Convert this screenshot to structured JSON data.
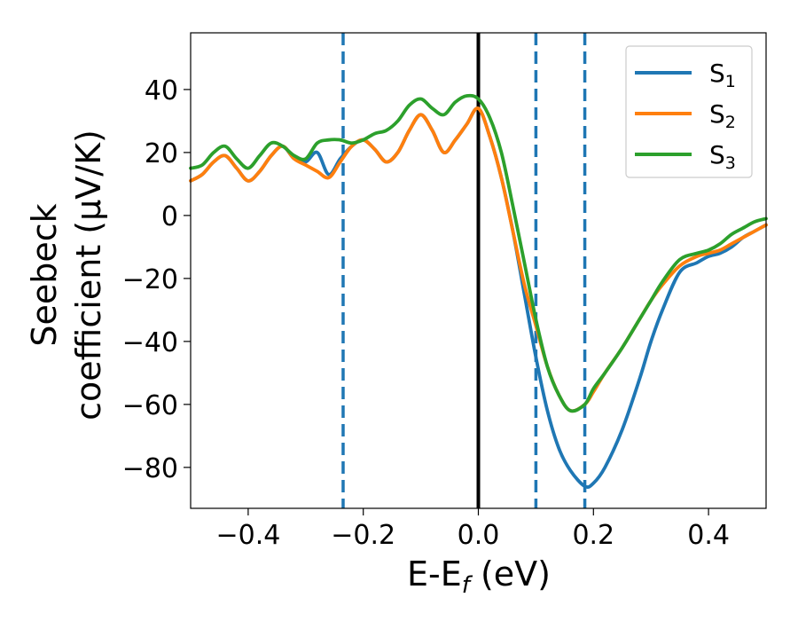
{
  "chart_data": {
    "type": "line",
    "xlabel": "E-E",
    "xlabel_sub": "f",
    "xlabel_unit": " (eV)",
    "ylabel_line1": "Seebeck",
    "ylabel_line2": "coefficient  (μV/K)",
    "xlim": [
      -0.5,
      0.5
    ],
    "ylim": [
      -93,
      58
    ],
    "xticks": [
      -0.4,
      -0.2,
      0.0,
      0.2,
      0.4
    ],
    "xtick_labels": [
      "−0.4",
      "−0.2",
      "0.0",
      "0.2",
      "0.4"
    ],
    "yticks": [
      40,
      20,
      0,
      -20,
      -40,
      -60,
      -80
    ],
    "ytick_labels": [
      "40",
      "20",
      "0",
      "−20",
      "−40",
      "−60",
      "−80"
    ],
    "grid": false,
    "legend_position": "top-right",
    "vertical_lines": [
      {
        "x": 0.0,
        "style": "solid",
        "color": "#000000"
      },
      {
        "x": -0.235,
        "style": "dashed",
        "color": "#1f77b4"
      },
      {
        "x": 0.1,
        "style": "dashed",
        "color": "#1f77b4"
      },
      {
        "x": 0.185,
        "style": "dashed",
        "color": "#1f77b4"
      }
    ],
    "series": [
      {
        "name": "S",
        "sub": "1",
        "color": "#1f77b4",
        "x": [
          -0.5,
          -0.48,
          -0.46,
          -0.44,
          -0.42,
          -0.4,
          -0.38,
          -0.36,
          -0.34,
          -0.32,
          -0.3,
          -0.28,
          -0.26,
          -0.24,
          -0.22,
          -0.2,
          -0.18,
          -0.16,
          -0.14,
          -0.12,
          -0.1,
          -0.08,
          -0.06,
          -0.04,
          -0.02,
          0.0,
          0.02,
          0.04,
          0.06,
          0.08,
          0.1,
          0.12,
          0.14,
          0.16,
          0.185,
          0.2,
          0.22,
          0.25,
          0.28,
          0.3,
          0.32,
          0.35,
          0.38,
          0.4,
          0.42,
          0.44,
          0.46,
          0.48,
          0.5
        ],
        "y": [
          11,
          13,
          17,
          19,
          15,
          11,
          14,
          19,
          22,
          18,
          17,
          20,
          13,
          18,
          22,
          24,
          21,
          17,
          20,
          27,
          32,
          27,
          20,
          24,
          29,
          34,
          25,
          12,
          -5,
          -25,
          -45,
          -62,
          -74,
          -81,
          -86,
          -85,
          -80,
          -68,
          -52,
          -40,
          -30,
          -18,
          -15,
          -13,
          -12,
          -10,
          -7,
          -5,
          -3
        ]
      },
      {
        "name": "S",
        "sub": "2",
        "color": "#ff7f0e",
        "x": [
          -0.5,
          -0.48,
          -0.46,
          -0.44,
          -0.42,
          -0.4,
          -0.38,
          -0.36,
          -0.34,
          -0.32,
          -0.3,
          -0.28,
          -0.26,
          -0.24,
          -0.22,
          -0.2,
          -0.18,
          -0.16,
          -0.14,
          -0.12,
          -0.1,
          -0.08,
          -0.06,
          -0.04,
          -0.02,
          0.0,
          0.02,
          0.04,
          0.06,
          0.08,
          0.1,
          0.12,
          0.14,
          0.16,
          0.185,
          0.2,
          0.22,
          0.25,
          0.28,
          0.3,
          0.32,
          0.35,
          0.38,
          0.4,
          0.42,
          0.44,
          0.46,
          0.48,
          0.5
        ],
        "y": [
          11,
          13,
          17,
          19,
          15,
          11,
          14,
          19,
          22,
          18,
          16,
          14,
          12,
          17,
          22,
          24,
          21,
          17,
          20,
          27,
          32,
          27,
          20,
          24,
          29,
          34,
          25,
          12,
          -5,
          -22,
          -35,
          -48,
          -57,
          -62,
          -60,
          -56,
          -50,
          -42,
          -33,
          -27,
          -22,
          -16,
          -13,
          -12,
          -11,
          -9,
          -7,
          -5,
          -3
        ]
      },
      {
        "name": "S",
        "sub": "3",
        "color": "#2ca02c",
        "x": [
          -0.5,
          -0.48,
          -0.46,
          -0.44,
          -0.42,
          -0.4,
          -0.38,
          -0.36,
          -0.34,
          -0.32,
          -0.3,
          -0.28,
          -0.26,
          -0.24,
          -0.22,
          -0.2,
          -0.18,
          -0.16,
          -0.14,
          -0.12,
          -0.1,
          -0.08,
          -0.06,
          -0.04,
          -0.02,
          0.0,
          0.02,
          0.04,
          0.06,
          0.08,
          0.1,
          0.12,
          0.14,
          0.16,
          0.185,
          0.2,
          0.22,
          0.25,
          0.28,
          0.3,
          0.32,
          0.35,
          0.38,
          0.4,
          0.42,
          0.44,
          0.46,
          0.48,
          0.5
        ],
        "y": [
          15,
          16,
          20,
          22,
          18,
          15,
          19,
          23,
          22,
          19,
          18,
          23,
          24,
          24,
          23,
          24,
          26,
          27,
          30,
          35,
          37,
          34,
          32,
          36,
          38,
          37,
          31,
          20,
          3,
          -15,
          -33,
          -48,
          -57,
          -62,
          -60,
          -55,
          -50,
          -42,
          -33,
          -27,
          -21,
          -14,
          -12,
          -11,
          -9,
          -6,
          -4,
          -2,
          -1
        ]
      }
    ]
  }
}
